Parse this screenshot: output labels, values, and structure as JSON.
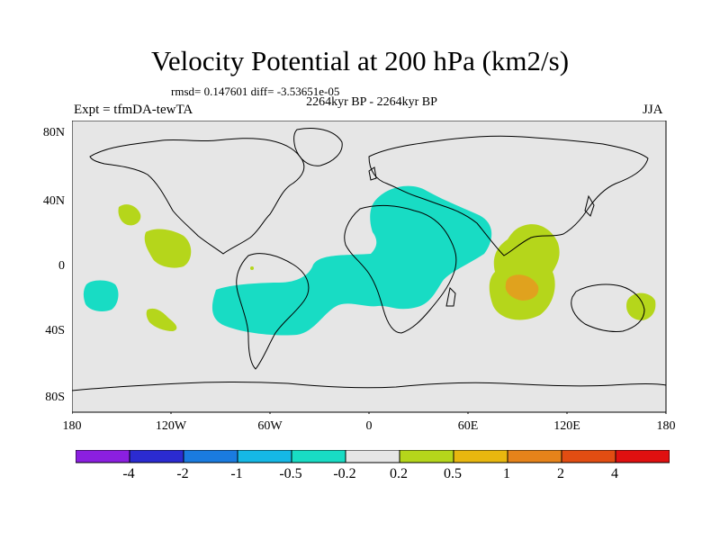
{
  "header": {
    "title": "Velocity Potential at 200 hPa (km2/s)",
    "stats": "rmsd= 0.147601 diff= -3.53651e-05",
    "period": "2264kyr BP - 2264kyr BP",
    "experiment": "Expt = tfmDA-tewTA",
    "season": "JJA"
  },
  "axes": {
    "lat_labels": [
      "80N",
      "40N",
      "0",
      "40S",
      "80S"
    ],
    "lon_labels": [
      "180",
      "120W",
      "60W",
      "0",
      "60E",
      "120E",
      "180"
    ]
  },
  "colorbar": {
    "labels": [
      "-4",
      "-2",
      "-1",
      "-0.5",
      "-0.2",
      "0.2",
      "0.5",
      "1",
      "2",
      "4"
    ],
    "colors": [
      "#8b1fe0",
      "#2b2bd1",
      "#1a7be0",
      "#15b8e6",
      "#18dcc4",
      "#e6e6e6",
      "#b5d61b",
      "#e8b70f",
      "#e6831a",
      "#e24d12",
      "#e01010"
    ]
  },
  "colors": {
    "land_background": "#e6e6e6",
    "neg_anomaly": "#18dcc4",
    "pos_anomaly": "#b5d61b",
    "strong_pos_anomaly": "#e0a21e"
  }
}
